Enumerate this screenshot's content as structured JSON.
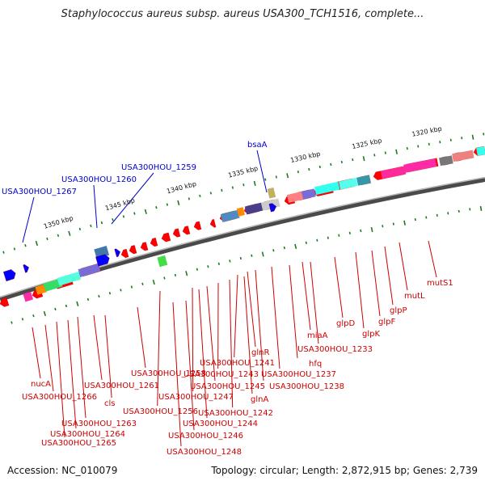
{
  "title": "Staphylococcus aureus subsp. aureus USA300_TCH1516, complete...",
  "footer": {
    "accession": "Accession: NC_010079",
    "stats": "Topology: circular; Length: 2,872,915 bp; Genes: 2,739"
  },
  "scale": {
    "unit": "kbp",
    "ticks": [
      "1350 kbp",
      "1345 kbp",
      "1340 kbp",
      "1335 kbp",
      "1330 kbp",
      "1325 kbp",
      "1320 kbp"
    ]
  },
  "colors": {
    "label_red": "#cc0000",
    "label_blue": "#0000cc",
    "backbone": "#7a7a7a",
    "gene_red": "#ff0000",
    "gene_blue": "#0000ff",
    "tick_green": "#1e7a1e"
  },
  "labels_blue": [
    "USA300HOU_1267",
    "USA300HOU_1260",
    "USA300HOU_1259",
    "bsaA"
  ],
  "labels_red": [
    "mutS1",
    "mutL",
    "glpP",
    "glpF",
    "glpK",
    "glpD",
    "miaA",
    "USA300HOU_1233",
    "hfq",
    "USA300HOU_1237",
    "glnR",
    "USA300HOU_1238",
    "USA300HOU_1241",
    "glnA",
    "USA300HOU_1243",
    "USA300HOU_1242",
    "USA300HOU_1245",
    "USA300HOU_1258",
    "USA300HOU_1247",
    "USA300HOU_1244",
    "USA300HOU_1256",
    "USA300HOU_1246",
    "USA300HOU_1248",
    "nucA",
    "USA300HOU_1261",
    "USA300HOU_1266",
    "cls",
    "USA300HOU_1263",
    "USA300HOU_1264",
    "USA300HOU_1265"
  ]
}
